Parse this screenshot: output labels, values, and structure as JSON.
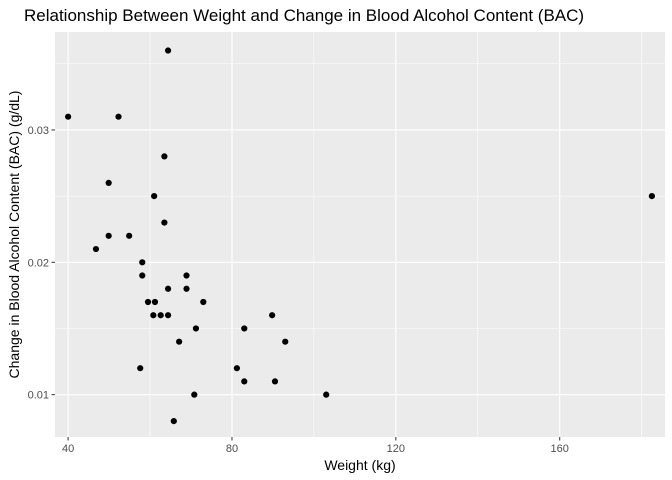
{
  "chart_data": {
    "type": "scatter",
    "title": "Relationship Between Weight and Change in Blood Alcohol Content (BAC)",
    "xlabel": "Weight (kg)",
    "ylabel": "Change in Blood Alcohol Content (BAC) (g/dL)",
    "xlim": [
      36.8,
      185.7
    ],
    "ylim": [
      0.0068,
      0.0374
    ],
    "x_ticks": [
      40,
      80,
      120,
      160
    ],
    "x_tick_labels": [
      "40",
      "80",
      "120",
      "160"
    ],
    "x_minor_ticks": [
      60,
      100,
      140,
      180
    ],
    "y_ticks": [
      0.01,
      0.02,
      0.03
    ],
    "y_tick_labels": [
      "0.01",
      "0.02",
      "0.03"
    ],
    "y_minor_ticks": [
      0.015,
      0.025,
      0.035
    ],
    "grid": true,
    "legend": "none",
    "colors": {
      "panel": "#ebebeb",
      "grid": "#ffffff",
      "point": "#000000"
    },
    "points": [
      {
        "x": 40,
        "y": 0.031
      },
      {
        "x": 46.8,
        "y": 0.021
      },
      {
        "x": 49.9,
        "y": 0.026
      },
      {
        "x": 49.9,
        "y": 0.022
      },
      {
        "x": 52.3,
        "y": 0.031
      },
      {
        "x": 54.9,
        "y": 0.022
      },
      {
        "x": 57.6,
        "y": 0.012
      },
      {
        "x": 58.1,
        "y": 0.02
      },
      {
        "x": 58.1,
        "y": 0.019
      },
      {
        "x": 59.5,
        "y": 0.017
      },
      {
        "x": 60.8,
        "y": 0.016
      },
      {
        "x": 61,
        "y": 0.025
      },
      {
        "x": 61.2,
        "y": 0.017
      },
      {
        "x": 62.6,
        "y": 0.016
      },
      {
        "x": 63.5,
        "y": 0.028
      },
      {
        "x": 63.5,
        "y": 0.023
      },
      {
        "x": 64.4,
        "y": 0.036
      },
      {
        "x": 64.4,
        "y": 0.018
      },
      {
        "x": 64.4,
        "y": 0.016
      },
      {
        "x": 65.8,
        "y": 0.008
      },
      {
        "x": 67.1,
        "y": 0.014
      },
      {
        "x": 68.9,
        "y": 0.019
      },
      {
        "x": 68.9,
        "y": 0.018
      },
      {
        "x": 70.8,
        "y": 0.01
      },
      {
        "x": 71.2,
        "y": 0.015
      },
      {
        "x": 73,
        "y": 0.017
      },
      {
        "x": 81.2,
        "y": 0.012
      },
      {
        "x": 83,
        "y": 0.015
      },
      {
        "x": 83,
        "y": 0.011
      },
      {
        "x": 89.8,
        "y": 0.016
      },
      {
        "x": 90.5,
        "y": 0.011
      },
      {
        "x": 93,
        "y": 0.014
      },
      {
        "x": 103,
        "y": 0.01
      },
      {
        "x": 182.5,
        "y": 0.025
      }
    ]
  }
}
